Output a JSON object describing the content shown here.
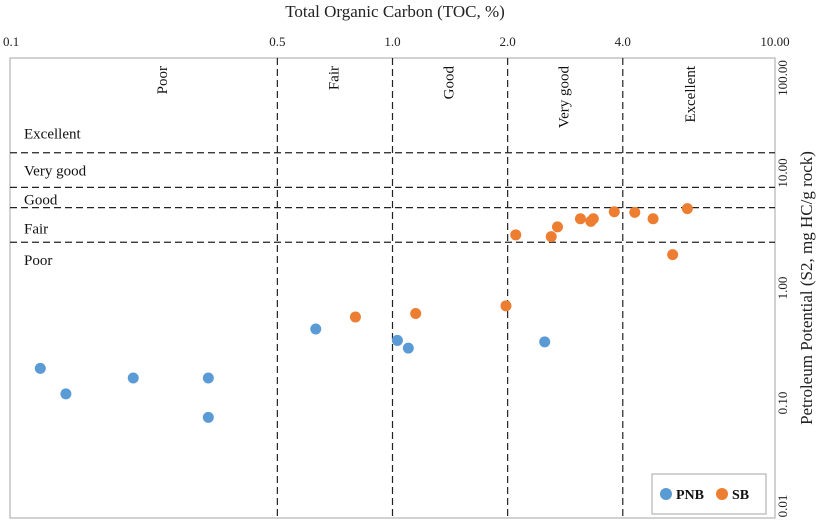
{
  "chart_data": {
    "type": "scatter",
    "title": "",
    "xlabel": "Total Organic Carbon (TOC, %)",
    "ylabel": "Petroleum Potential (S2, mg HC/g rock)",
    "x_scale": "log",
    "y_scale": "log",
    "xlim": [
      0.1,
      10.0
    ],
    "ylim": [
      0.01,
      100.0
    ],
    "x_axis_position": "top",
    "y_axis_position": "right",
    "grid": false,
    "x_ticks": [
      {
        "value": 0.1,
        "label": "0.1"
      },
      {
        "value": 0.5,
        "label": "0.5"
      },
      {
        "value": 1.0,
        "label": "1.0"
      },
      {
        "value": 2.0,
        "label": "2.0"
      },
      {
        "value": 4.0,
        "label": "4.0"
      },
      {
        "value": 10.0,
        "label": "10.00"
      }
    ],
    "y_ticks": [
      {
        "value": 0.01,
        "label": "0.01"
      },
      {
        "value": 0.1,
        "label": "0.10"
      },
      {
        "value": 1.0,
        "label": "1.00"
      },
      {
        "value": 10.0,
        "label": "10.00"
      },
      {
        "value": 100.0,
        "label": "100.00"
      }
    ],
    "x_class_boundaries": [
      0.5,
      1.0,
      2.0,
      4.0
    ],
    "y_class_boundaries": [
      2.5,
      5.0,
      7.5,
      15.0
    ],
    "toc_classes": [
      {
        "label": "Poor",
        "x": 0.25
      },
      {
        "label": "Fair",
        "x": 0.7
      },
      {
        "label": "Good",
        "x": 1.4
      },
      {
        "label": "Very good",
        "x": 2.8
      },
      {
        "label": "Excellent",
        "x": 6.0
      }
    ],
    "s2_classes": [
      {
        "label": "Excellent",
        "y": 22
      },
      {
        "label": "Very good",
        "y": 10.5
      },
      {
        "label": "Good",
        "y": 5.9
      },
      {
        "label": "Fair",
        "y": 3.3
      },
      {
        "label": "Poor",
        "y": 1.75
      }
    ],
    "legend_position": "bottom-right",
    "series": [
      {
        "name": "PNB",
        "color": "#5B9BD5",
        "points": [
          {
            "x": 0.12,
            "y": 0.2
          },
          {
            "x": 0.14,
            "y": 0.12
          },
          {
            "x": 0.21,
            "y": 0.165
          },
          {
            "x": 0.33,
            "y": 0.165
          },
          {
            "x": 0.33,
            "y": 0.075
          },
          {
            "x": 0.63,
            "y": 0.44
          },
          {
            "x": 1.03,
            "y": 0.35
          },
          {
            "x": 1.1,
            "y": 0.3
          },
          {
            "x": 2.5,
            "y": 0.34
          }
        ]
      },
      {
        "name": "SB",
        "color": "#ED7D31",
        "points": [
          {
            "x": 0.8,
            "y": 0.56
          },
          {
            "x": 1.15,
            "y": 0.6
          },
          {
            "x": 1.98,
            "y": 0.7
          },
          {
            "x": 2.1,
            "y": 2.9
          },
          {
            "x": 2.6,
            "y": 2.8
          },
          {
            "x": 2.7,
            "y": 3.4
          },
          {
            "x": 3.1,
            "y": 4.0
          },
          {
            "x": 3.3,
            "y": 3.8
          },
          {
            "x": 3.35,
            "y": 4.0
          },
          {
            "x": 3.8,
            "y": 4.6
          },
          {
            "x": 4.3,
            "y": 4.55
          },
          {
            "x": 4.8,
            "y": 4.0
          },
          {
            "x": 5.4,
            "y": 1.95
          },
          {
            "x": 5.9,
            "y": 4.9
          }
        ]
      }
    ]
  }
}
